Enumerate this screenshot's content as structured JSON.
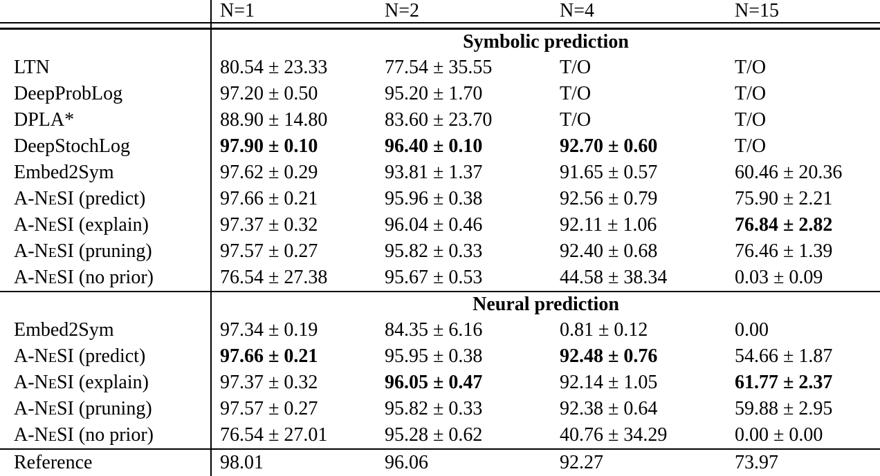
{
  "colors": {
    "text": "#000000",
    "background": "#ffffff",
    "rule": "#000000"
  },
  "chart_data": {
    "type": "table",
    "columns": [
      "",
      "N=1",
      "N=2",
      "N=4",
      "N=15"
    ],
    "sections": [
      {
        "title": "Symbolic prediction",
        "rows": [
          {
            "method_main": "LTN",
            "method_smallcaps": false,
            "method_rest": "",
            "cells": [
              {
                "t": "80.54 ± 23.33",
                "b": false
              },
              {
                "t": "77.54 ± 35.55",
                "b": false
              },
              {
                "t": "T/O",
                "b": false
              },
              {
                "t": "T/O",
                "b": false
              }
            ]
          },
          {
            "method_main": "DeepProbLog",
            "method_smallcaps": false,
            "method_rest": "",
            "cells": [
              {
                "t": "97.20 ± 0.50",
                "b": false
              },
              {
                "t": "95.20 ± 1.70",
                "b": false
              },
              {
                "t": "T/O",
                "b": false
              },
              {
                "t": "T/O",
                "b": false
              }
            ]
          },
          {
            "method_main": "DPLA*",
            "method_smallcaps": false,
            "method_rest": "",
            "cells": [
              {
                "t": "88.90 ± 14.80",
                "b": false
              },
              {
                "t": "83.60 ± 23.70",
                "b": false
              },
              {
                "t": "T/O",
                "b": false
              },
              {
                "t": "T/O",
                "b": false
              }
            ]
          },
          {
            "method_main": "DeepStochLog",
            "method_smallcaps": false,
            "method_rest": "",
            "cells": [
              {
                "t": "97.90 ± 0.10",
                "b": true
              },
              {
                "t": "96.40 ± 0.10",
                "b": true
              },
              {
                "t": "92.70 ± 0.60",
                "b": true
              },
              {
                "t": "T/O",
                "b": false
              }
            ]
          },
          {
            "method_main": "Embed2Sym",
            "method_smallcaps": false,
            "method_rest": "",
            "cells": [
              {
                "t": "97.62 ± 0.29",
                "b": false
              },
              {
                "t": "93.81 ± 1.37",
                "b": false
              },
              {
                "t": "91.65 ± 0.57",
                "b": false
              },
              {
                "t": "60.46 ± 20.36",
                "b": false
              }
            ]
          },
          {
            "method_main": "A-NeSI",
            "method_smallcaps": true,
            "method_rest": " (predict)",
            "cells": [
              {
                "t": "97.66 ± 0.21",
                "b": false
              },
              {
                "t": "95.96 ± 0.38",
                "b": false
              },
              {
                "t": "92.56 ± 0.79",
                "b": false
              },
              {
                "t": "75.90 ± 2.21",
                "b": false
              }
            ]
          },
          {
            "method_main": "A-NeSI",
            "method_smallcaps": true,
            "method_rest": " (explain)",
            "cells": [
              {
                "t": "97.37 ± 0.32",
                "b": false
              },
              {
                "t": "96.04 ± 0.46",
                "b": false
              },
              {
                "t": "92.11 ± 1.06",
                "b": false
              },
              {
                "t": "76.84 ± 2.82",
                "b": true
              }
            ]
          },
          {
            "method_main": "A-NeSI",
            "method_smallcaps": true,
            "method_rest": " (pruning)",
            "cells": [
              {
                "t": "97.57 ± 0.27",
                "b": false
              },
              {
                "t": "95.82 ± 0.33",
                "b": false
              },
              {
                "t": "92.40 ± 0.68",
                "b": false
              },
              {
                "t": "76.46 ± 1.39",
                "b": false
              }
            ]
          },
          {
            "method_main": "A-NeSI",
            "method_smallcaps": true,
            "method_rest": " (no prior)",
            "cells": [
              {
                "t": "76.54 ± 27.38",
                "b": false
              },
              {
                "t": "95.67 ± 0.53",
                "b": false
              },
              {
                "t": "44.58 ± 38.34",
                "b": false
              },
              {
                "t": "0.03 ± 0.09",
                "b": false
              }
            ]
          }
        ]
      },
      {
        "title": "Neural prediction",
        "rows": [
          {
            "method_main": "Embed2Sym",
            "method_smallcaps": false,
            "method_rest": "",
            "cells": [
              {
                "t": "97.34 ± 0.19",
                "b": false
              },
              {
                "t": "84.35 ± 6.16",
                "b": false
              },
              {
                "t": "0.81 ± 0.12",
                "b": false
              },
              {
                "t": "0.00",
                "b": false
              }
            ]
          },
          {
            "method_main": "A-NeSI",
            "method_smallcaps": true,
            "method_rest": " (predict)",
            "cells": [
              {
                "t": "97.66 ± 0.21",
                "b": true
              },
              {
                "t": "95.95 ± 0.38",
                "b": false
              },
              {
                "t": "92.48 ± 0.76",
                "b": true
              },
              {
                "t": "54.66 ± 1.87",
                "b": false
              }
            ]
          },
          {
            "method_main": "A-NeSI",
            "method_smallcaps": true,
            "method_rest": " (explain)",
            "cells": [
              {
                "t": "97.37 ± 0.32",
                "b": false
              },
              {
                "t": "96.05 ± 0.47",
                "b": true
              },
              {
                "t": "92.14 ± 1.05",
                "b": false
              },
              {
                "t": "61.77 ± 2.37",
                "b": true
              }
            ]
          },
          {
            "method_main": "A-NeSI",
            "method_smallcaps": true,
            "method_rest": " (pruning)",
            "cells": [
              {
                "t": "97.57 ± 0.27",
                "b": false
              },
              {
                "t": "95.82 ± 0.33",
                "b": false
              },
              {
                "t": "92.38 ± 0.64",
                "b": false
              },
              {
                "t": "59.88 ± 2.95",
                "b": false
              }
            ]
          },
          {
            "method_main": "A-NeSI",
            "method_smallcaps": true,
            "method_rest": " (no prior)",
            "cells": [
              {
                "t": "76.54 ± 27.01",
                "b": false
              },
              {
                "t": "95.28 ± 0.62",
                "b": false
              },
              {
                "t": "40.76 ± 34.29",
                "b": false
              },
              {
                "t": "0.00 ± 0.00",
                "b": false
              }
            ]
          }
        ]
      }
    ],
    "footer_row": {
      "method": "Reference",
      "cells": [
        "98.01",
        "96.06",
        "92.27",
        "73.97"
      ]
    }
  }
}
